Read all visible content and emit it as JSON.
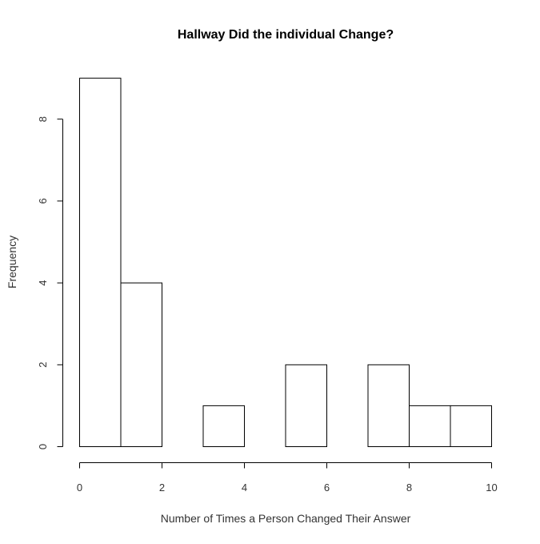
{
  "chart_data": {
    "type": "bar",
    "title": "Hallway Did the individual Change?",
    "xlabel": "Number of Times a Person Changed Their Answer",
    "ylabel": "Frequency",
    "bins": [
      {
        "start": 0,
        "end": 1,
        "count": 9
      },
      {
        "start": 1,
        "end": 2,
        "count": 4
      },
      {
        "start": 2,
        "end": 3,
        "count": 0
      },
      {
        "start": 3,
        "end": 4,
        "count": 1
      },
      {
        "start": 4,
        "end": 5,
        "count": 0
      },
      {
        "start": 5,
        "end": 6,
        "count": 2
      },
      {
        "start": 6,
        "end": 7,
        "count": 0
      },
      {
        "start": 7,
        "end": 8,
        "count": 2
      },
      {
        "start": 8,
        "end": 9,
        "count": 1
      },
      {
        "start": 9,
        "end": 10,
        "count": 1
      }
    ],
    "xlim": [
      0,
      10
    ],
    "ylim": [
      0,
      9
    ],
    "x_ticks": [
      "0",
      "2",
      "4",
      "6",
      "8",
      "10"
    ],
    "y_ticks": [
      "0",
      "2",
      "4",
      "6",
      "8"
    ],
    "grid": false
  }
}
